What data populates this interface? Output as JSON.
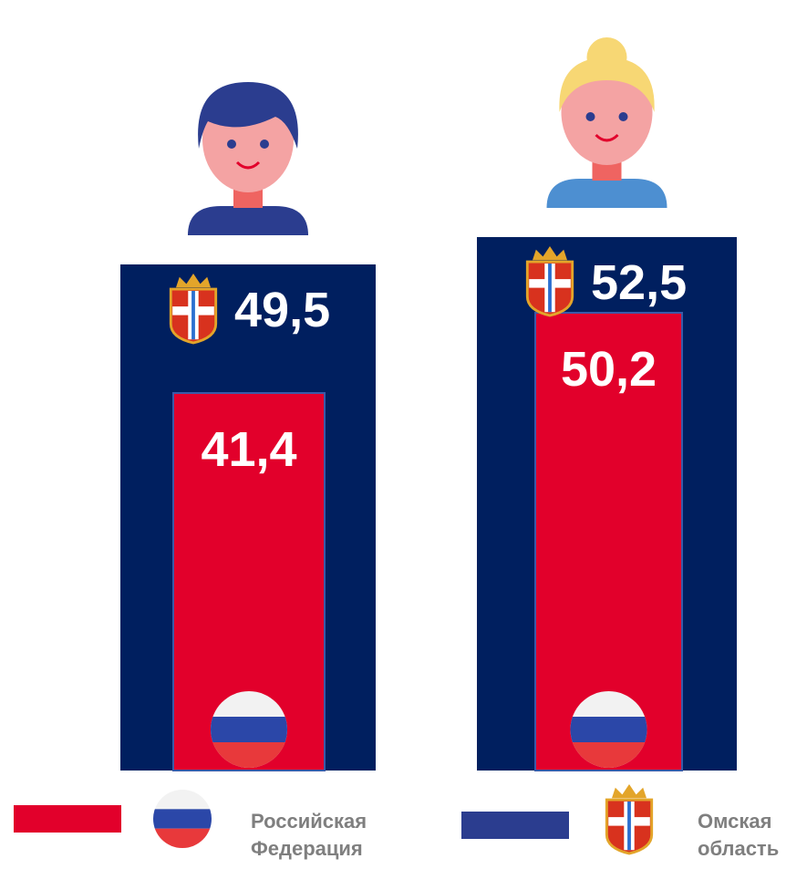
{
  "chart_data": {
    "type": "bar",
    "categories": [
      null,
      null
    ],
    "series": [
      {
        "name": "Российская Федерация",
        "color": "#e2002b",
        "values": [
          41.4,
          50.2
        ],
        "value_labels": [
          "41,4",
          "50,2"
        ]
      },
      {
        "name": "Омская область",
        "color": "#001f5f",
        "values": [
          49.5,
          52.5
        ],
        "value_labels": [
          "49,5",
          "52,5"
        ]
      }
    ]
  }
}
